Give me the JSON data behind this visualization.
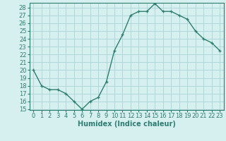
{
  "x": [
    0,
    1,
    2,
    3,
    4,
    5,
    6,
    7,
    8,
    9,
    10,
    11,
    12,
    13,
    14,
    15,
    16,
    17,
    18,
    19,
    20,
    21,
    22,
    23
  ],
  "y": [
    20,
    18,
    17.5,
    17.5,
    17,
    16,
    15,
    16,
    16.5,
    18.5,
    22.5,
    24.5,
    27,
    27.5,
    27.5,
    28.5,
    27.5,
    27.5,
    27,
    26.5,
    25,
    24,
    23.5,
    22.5
  ],
  "line_color": "#2e7d6e",
  "marker": "+",
  "bg_color": "#d6f0f0",
  "grid_color": "#b0d8d8",
  "title": "",
  "xlabel": "Humidex (Indice chaleur)",
  "ylabel": "",
  "ylim": [
    15,
    28.5
  ],
  "xlim": [
    -0.5,
    23.5
  ],
  "yticks": [
    15,
    16,
    17,
    18,
    19,
    20,
    21,
    22,
    23,
    24,
    25,
    26,
    27,
    28
  ],
  "xticks": [
    0,
    1,
    2,
    3,
    4,
    5,
    6,
    7,
    8,
    9,
    10,
    11,
    12,
    13,
    14,
    15,
    16,
    17,
    18,
    19,
    20,
    21,
    22,
    23
  ],
  "tick_color": "#2e7d6e",
  "axis_color": "#2e7d6e",
  "label_fontsize": 6,
  "xlabel_fontsize": 7
}
